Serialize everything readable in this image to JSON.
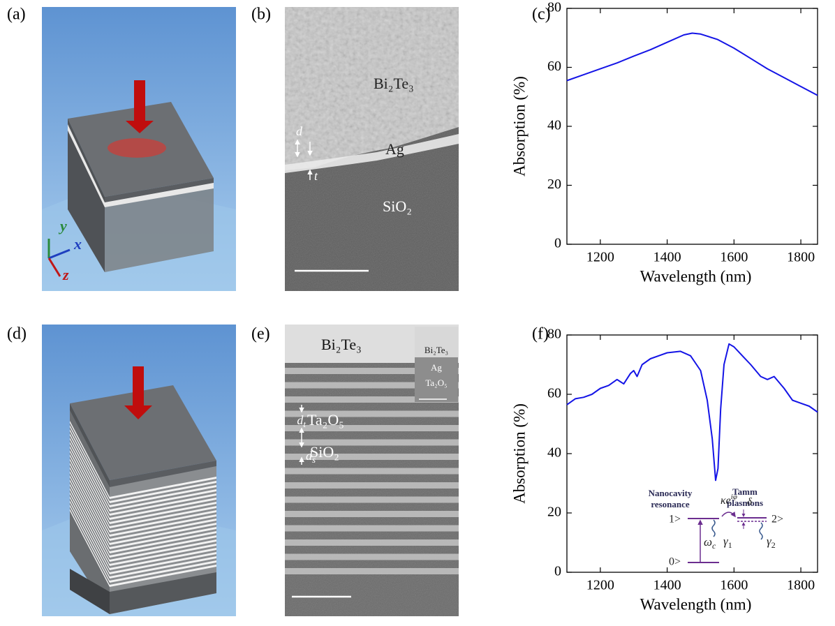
{
  "panel_labels": [
    "(a)",
    "(b)",
    "(c)",
    "(d)",
    "(e)",
    "(f)"
  ],
  "panel_a": {
    "axes": [
      "y",
      "x",
      "z"
    ]
  },
  "panel_b": {
    "labels": [
      "Bi₂Te₃",
      "Ag",
      "SiO₂"
    ],
    "d": "d",
    "t": "t"
  },
  "panel_e": {
    "labels": [
      "Bi₂Te₃",
      "Ta₂O₅",
      "SiO₂"
    ],
    "dt": {
      "base": "d",
      "sub": "t"
    },
    "ds": {
      "base": "d",
      "sub": "s"
    },
    "inset": [
      "Bi₂Te₃",
      "Ag",
      "Ta₂O₅"
    ]
  },
  "panel_f_inset": {
    "left_title": [
      "Nanocavity",
      "resonance"
    ],
    "right_title": [
      "Tamm",
      "plasmons"
    ],
    "states": [
      "1>",
      "2>",
      "0>"
    ],
    "coupling": {
      "base": "κe",
      "sup": "iφ"
    },
    "detuning": "δ",
    "omega": {
      "base": "ω",
      "sub": "c"
    },
    "gamma1": {
      "base": "γ",
      "sub": "1"
    },
    "gamma2": {
      "base": "γ",
      "sub": "2"
    }
  },
  "chart_data": [
    {
      "type": "line",
      "xlabel": "Wavelength (nm)",
      "ylabel": "Absorption (%)",
      "color": "#1414e6",
      "x": [
        1100,
        1150,
        1200,
        1250,
        1300,
        1350,
        1400,
        1450,
        1475,
        1500,
        1550,
        1600,
        1650,
        1700,
        1750,
        1800,
        1850
      ],
      "values": [
        55.5,
        57.5,
        59.5,
        61.5,
        63.8,
        66,
        68.5,
        71,
        71.6,
        71.3,
        69.5,
        66.5,
        63,
        59.5,
        56.5,
        53.5,
        50.5
      ],
      "xlim": [
        1100,
        1850
      ],
      "ylim": [
        0,
        80
      ],
      "xticks": [
        1200,
        1400,
        1600,
        1800
      ],
      "yticks": [
        0,
        20,
        40,
        60,
        80
      ]
    },
    {
      "type": "line",
      "xlabel": "Wavelength (nm)",
      "ylabel": "Absorption (%)",
      "color": "#1414e6",
      "x": [
        1100,
        1125,
        1150,
        1175,
        1200,
        1225,
        1250,
        1270,
        1290,
        1300,
        1310,
        1325,
        1350,
        1400,
        1440,
        1470,
        1500,
        1520,
        1535,
        1545,
        1552,
        1560,
        1570,
        1585,
        1600,
        1625,
        1650,
        1680,
        1700,
        1720,
        1750,
        1775,
        1800,
        1825,
        1850
      ],
      "values": [
        56.5,
        58.5,
        59,
        60,
        62,
        63,
        65,
        63.5,
        67,
        68,
        66,
        70,
        72,
        74,
        74.5,
        73,
        68,
        58,
        45,
        31,
        35,
        55,
        70,
        77,
        76,
        73,
        70,
        66,
        65,
        66,
        62,
        58,
        57,
        56,
        54
      ],
      "xlim": [
        1100,
        1850
      ],
      "ylim": [
        0,
        80
      ],
      "xticks": [
        1200,
        1400,
        1600,
        1800
      ],
      "yticks": [
        0,
        20,
        40,
        60,
        80
      ]
    }
  ]
}
